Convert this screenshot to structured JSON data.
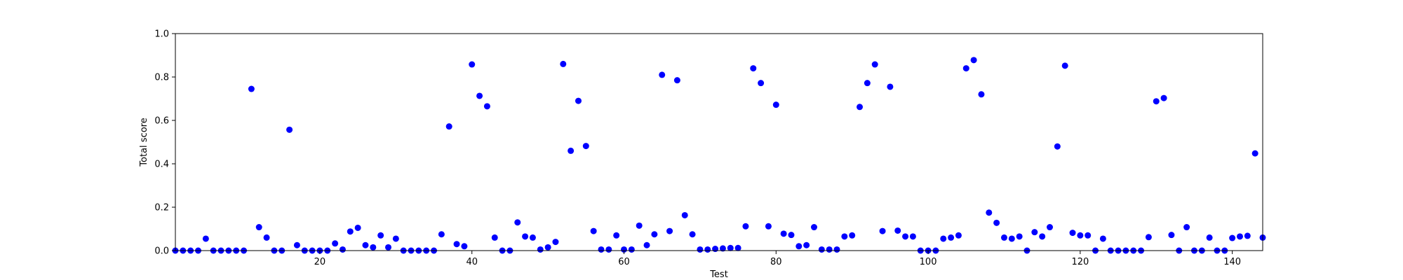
{
  "chart_data": {
    "type": "scatter",
    "title": "",
    "xlabel": "Test",
    "ylabel": "Total score",
    "xlim": [
      1,
      144
    ],
    "ylim": [
      0.0,
      1.0
    ],
    "xticks": [
      20,
      40,
      60,
      80,
      100,
      120,
      140
    ],
    "xtick_labels": [
      "20",
      "40",
      "60",
      "80",
      "100",
      "120",
      "140"
    ],
    "yticks": [
      0.0,
      0.2,
      0.4,
      0.6,
      0.8,
      1.0
    ],
    "ytick_labels": [
      "0.0",
      "0.2",
      "0.4",
      "0.6",
      "0.8",
      "1.0"
    ],
    "grid": false,
    "marker_color": "#0000ff",
    "x": [
      1,
      2,
      3,
      4,
      5,
      6,
      7,
      8,
      9,
      10,
      11,
      12,
      13,
      14,
      15,
      16,
      17,
      18,
      19,
      20,
      21,
      22,
      23,
      24,
      25,
      26,
      27,
      28,
      29,
      30,
      31,
      32,
      33,
      34,
      35,
      36,
      37,
      38,
      39,
      40,
      41,
      42,
      43,
      44,
      45,
      46,
      47,
      48,
      49,
      50,
      51,
      52,
      53,
      54,
      55,
      56,
      57,
      58,
      59,
      60,
      61,
      62,
      63,
      64,
      65,
      66,
      67,
      68,
      69,
      70,
      71,
      72,
      73,
      74,
      75,
      76,
      77,
      78,
      79,
      80,
      81,
      82,
      83,
      84,
      85,
      86,
      87,
      88,
      89,
      90,
      91,
      92,
      93,
      94,
      95,
      96,
      97,
      98,
      99,
      100,
      101,
      102,
      103,
      104,
      105,
      106,
      107,
      108,
      109,
      110,
      111,
      112,
      113,
      114,
      115,
      116,
      117,
      118,
      119,
      120,
      121,
      122,
      123,
      124,
      125,
      126,
      127,
      128,
      129,
      130,
      131,
      132,
      133,
      134,
      135,
      136,
      137,
      138,
      139,
      140,
      141,
      142,
      143,
      144
    ],
    "y": [
      0.0,
      0.0,
      0.0,
      0.0,
      0.055,
      0.0,
      0.0,
      0.0,
      0.0,
      0.0,
      0.745,
      0.108,
      0.06,
      0.0,
      0.0,
      0.557,
      0.025,
      0.0,
      0.0,
      0.0,
      0.0,
      0.033,
      0.005,
      0.088,
      0.105,
      0.025,
      0.015,
      0.07,
      0.015,
      0.055,
      0.0,
      0.0,
      0.0,
      0.0,
      0.0,
      0.075,
      0.572,
      0.03,
      0.02,
      0.858,
      0.713,
      0.665,
      0.06,
      0.0,
      0.0,
      0.13,
      0.065,
      0.06,
      0.005,
      0.015,
      0.04,
      0.86,
      0.46,
      0.69,
      0.482,
      0.09,
      0.005,
      0.005,
      0.07,
      0.005,
      0.005,
      0.115,
      0.025,
      0.075,
      0.81,
      0.09,
      0.785,
      0.163,
      0.075,
      0.005,
      0.005,
      0.008,
      0.01,
      0.012,
      0.012,
      0.112,
      0.84,
      0.772,
      0.112,
      0.672,
      0.078,
      0.072,
      0.02,
      0.025,
      0.108,
      0.005,
      0.005,
      0.005,
      0.065,
      0.07,
      0.662,
      0.772,
      0.858,
      0.09,
      0.755,
      0.092,
      0.065,
      0.065,
      0.0,
      0.0,
      0.0,
      0.055,
      0.06,
      0.07,
      0.84,
      0.878,
      0.72,
      0.175,
      0.128,
      0.06,
      0.055,
      0.065,
      0.0,
      0.085,
      0.065,
      0.108,
      0.48,
      0.852,
      0.082,
      0.07,
      0.07,
      0.0,
      0.055,
      0.0,
      0.0,
      0.0,
      0.0,
      0.0,
      0.062,
      0.688,
      0.703,
      0.072,
      0.0,
      0.108,
      0.0,
      0.0,
      0.06,
      0.0,
      0.0,
      0.058,
      0.065,
      0.068,
      0.448,
      0.06
    ]
  }
}
